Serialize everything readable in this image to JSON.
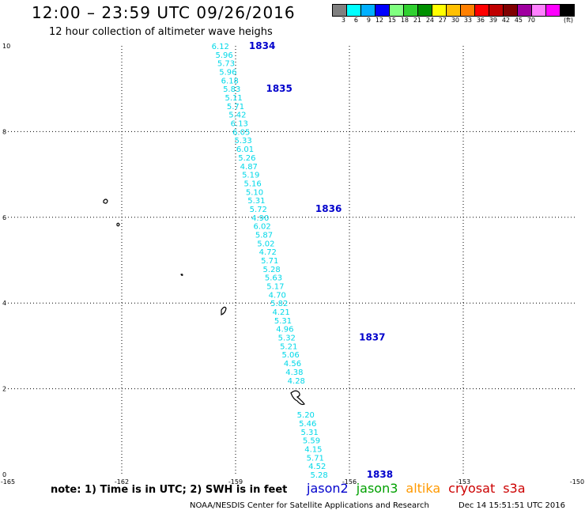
{
  "header": {
    "title": "12:00 – 23:59 UTC 09/26/2016",
    "subtitle": "12 hour collection of altimeter wave heighs"
  },
  "colorbar": {
    "unit": "(ft)",
    "labels": [
      "3",
      "6",
      "9",
      "12",
      "15",
      "18",
      "21",
      "24",
      "27",
      "30",
      "33",
      "36",
      "39",
      "42",
      "45",
      "70"
    ],
    "colors": [
      "#808080",
      "#00ffff",
      "#00b0ff",
      "#0000ff",
      "#80ff80",
      "#30d030",
      "#009000",
      "#ffff00",
      "#ffc000",
      "#ff8000",
      "#ff0000",
      "#c00000",
      "#800000",
      "#a000a0",
      "#ff80ff",
      "#ff00ff",
      "#000000"
    ]
  },
  "notes": {
    "note_text": "note: 1) Time is in UTC; 2) SWH is in feet",
    "credit": "NOAA/NESDIS Center for Satellite Applications and Research",
    "timestamp": "Dec 14 15:51:51 UTC 2016"
  },
  "legend": [
    {
      "name": "jason2",
      "color": "#0000cc"
    },
    {
      "name": "jason3",
      "color": "#00a000"
    },
    {
      "name": "altika",
      "color": "#ff9900"
    },
    {
      "name": "cryosat",
      "color": "#cc0000"
    },
    {
      "name": "s3a",
      "color": "#cc0000"
    }
  ],
  "chart_data": {
    "type": "scatter",
    "title": "12:00 – 23:59 UTC 09/26/2016",
    "subtitle": "12 hour collection of altimeter wave heighs",
    "xlim": [
      -165,
      -150
    ],
    "ylim": [
      0,
      10
    ],
    "x_ticks": [
      "-165",
      "-162",
      "-159",
      "-156",
      "-153",
      "-150"
    ],
    "y_ticks": [
      "0",
      "2",
      "4",
      "6",
      "8",
      "10"
    ],
    "grid": true,
    "series": [
      {
        "name": "jason2",
        "color": "#00d8e8",
        "points": [
          {
            "lon": -159.4,
            "lat": 10.0,
            "swh": "6.12"
          },
          {
            "lon": -159.3,
            "lat": 9.8,
            "swh": "5.96"
          },
          {
            "lon": -159.25,
            "lat": 9.6,
            "swh": "5.73"
          },
          {
            "lon": -159.2,
            "lat": 9.4,
            "swh": "5.96"
          },
          {
            "lon": -159.15,
            "lat": 9.2,
            "swh": "6.18"
          },
          {
            "lon": -159.1,
            "lat": 9.0,
            "swh": "5.83"
          },
          {
            "lon": -159.05,
            "lat": 8.8,
            "swh": "5.11"
          },
          {
            "lon": -159.0,
            "lat": 8.6,
            "swh": "5.71"
          },
          {
            "lon": -158.95,
            "lat": 8.4,
            "swh": "5.42"
          },
          {
            "lon": -158.9,
            "lat": 8.2,
            "swh": "6.13"
          },
          {
            "lon": -158.85,
            "lat": 8.0,
            "swh": "6.05"
          },
          {
            "lon": -158.8,
            "lat": 7.8,
            "swh": "5.33"
          },
          {
            "lon": -158.75,
            "lat": 7.6,
            "swh": "6.01"
          },
          {
            "lon": -158.7,
            "lat": 7.4,
            "swh": "5.26"
          },
          {
            "lon": -158.65,
            "lat": 7.2,
            "swh": "4.87"
          },
          {
            "lon": -158.6,
            "lat": 7.0,
            "swh": "5.19"
          },
          {
            "lon": -158.55,
            "lat": 6.8,
            "swh": "5.16"
          },
          {
            "lon": -158.5,
            "lat": 6.6,
            "swh": "5.10"
          },
          {
            "lon": -158.45,
            "lat": 6.4,
            "swh": "5.31"
          },
          {
            "lon": -158.4,
            "lat": 6.2,
            "swh": "5.72"
          },
          {
            "lon": -158.35,
            "lat": 6.0,
            "swh": "4.90"
          },
          {
            "lon": -158.3,
            "lat": 5.8,
            "swh": "6.02"
          },
          {
            "lon": -158.25,
            "lat": 5.6,
            "swh": "5.87"
          },
          {
            "lon": -158.2,
            "lat": 5.4,
            "swh": "5.02"
          },
          {
            "lon": -158.15,
            "lat": 5.2,
            "swh": "4.72"
          },
          {
            "lon": -158.1,
            "lat": 5.0,
            "swh": "5.71"
          },
          {
            "lon": -158.05,
            "lat": 4.8,
            "swh": "5.28"
          },
          {
            "lon": -158.0,
            "lat": 4.6,
            "swh": "5.63"
          },
          {
            "lon": -157.95,
            "lat": 4.4,
            "swh": "5.17"
          },
          {
            "lon": -157.9,
            "lat": 4.2,
            "swh": "4.70"
          },
          {
            "lon": -157.85,
            "lat": 4.0,
            "swh": "5.82"
          },
          {
            "lon": -157.8,
            "lat": 3.8,
            "swh": "4.21"
          },
          {
            "lon": -157.75,
            "lat": 3.6,
            "swh": "5.31"
          },
          {
            "lon": -157.7,
            "lat": 3.4,
            "swh": "4.96"
          },
          {
            "lon": -157.65,
            "lat": 3.2,
            "swh": "5.32"
          },
          {
            "lon": -157.6,
            "lat": 3.0,
            "swh": "5.21"
          },
          {
            "lon": -157.55,
            "lat": 2.8,
            "swh": "5.06"
          },
          {
            "lon": -157.5,
            "lat": 2.6,
            "swh": "4.56"
          },
          {
            "lon": -157.45,
            "lat": 2.4,
            "swh": "4.38"
          },
          {
            "lon": -157.4,
            "lat": 2.2,
            "swh": "4.28"
          },
          {
            "lon": -157.15,
            "lat": 1.4,
            "swh": "5.20"
          },
          {
            "lon": -157.1,
            "lat": 1.2,
            "swh": "5.46"
          },
          {
            "lon": -157.05,
            "lat": 1.0,
            "swh": "5.31"
          },
          {
            "lon": -157.0,
            "lat": 0.8,
            "swh": "5.59"
          },
          {
            "lon": -156.95,
            "lat": 0.6,
            "swh": "4.15"
          },
          {
            "lon": -156.9,
            "lat": 0.4,
            "swh": "5.71"
          },
          {
            "lon": -156.85,
            "lat": 0.2,
            "swh": "4.52"
          },
          {
            "lon": -156.8,
            "lat": 0.0,
            "swh": "5.28"
          }
        ]
      }
    ],
    "pass_labels": [
      {
        "text": "1834",
        "lon": -158.3,
        "lat": 10.0
      },
      {
        "text": "1835",
        "lon": -157.85,
        "lat": 9.0
      },
      {
        "text": "1836",
        "lon": -156.55,
        "lat": 6.2
      },
      {
        "text": "1837",
        "lon": -155.4,
        "lat": 3.2
      },
      {
        "text": "1838",
        "lon": -155.2,
        "lat": 0.0
      }
    ]
  }
}
